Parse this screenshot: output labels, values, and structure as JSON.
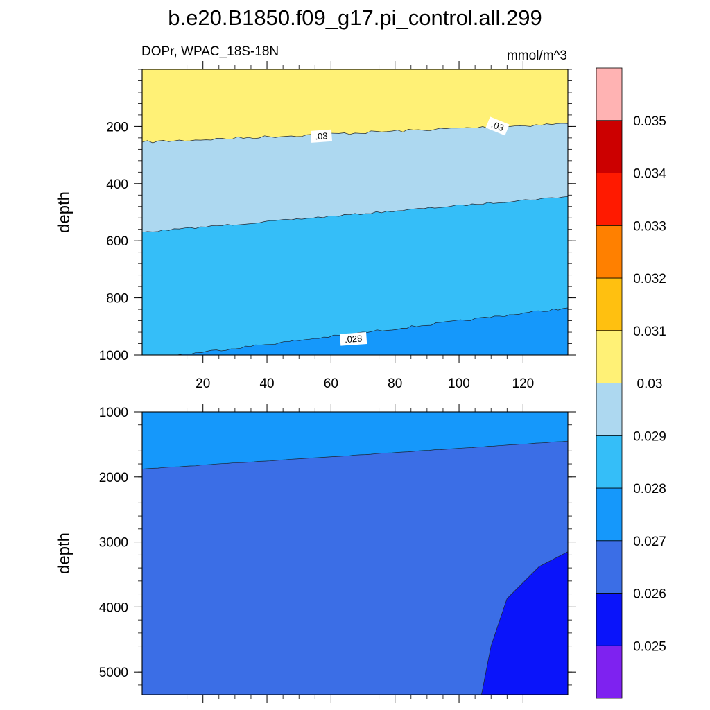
{
  "title": "b.e20.B1850.f09_g17.pi_control.all.299",
  "left_subtitle": "DOPr, WPAC_18S-18N",
  "right_subtitle": "mmol/m^3",
  "chart_data": {
    "type": "contour",
    "variable": "DOPr",
    "units": "mmol/m^3",
    "x": {
      "range": [
        1,
        134
      ],
      "ticks": [
        20,
        40,
        60,
        80,
        100,
        120
      ]
    },
    "panels": [
      {
        "name": "upper",
        "ylabel": "depth",
        "y_range": [
          0,
          1000
        ],
        "y_ticks": [
          200,
          400,
          600,
          800,
          1000
        ],
        "fills": [
          {
            "color": "#fff176",
            "range": "0.030-0.031"
          },
          {
            "color": "#add8f0",
            "range": "0.029-0.030"
          },
          {
            "color": "#35bef8",
            "range": "0.028-0.029"
          },
          {
            "color": "#1598fb",
            "range": "0.027-0.028"
          }
        ],
        "contours": [
          {
            "level": 0.03,
            "depth_at_x": [
              [
                1,
                255
              ],
              [
                134,
                190
              ]
            ]
          },
          {
            "level": 0.029,
            "depth_at_x": [
              [
                1,
                570
              ],
              [
                134,
                445
              ]
            ]
          },
          {
            "level": 0.028,
            "depth_at_x": [
              [
                12,
                1000
              ],
              [
                134,
                835
              ]
            ]
          }
        ],
        "contour_labels": [
          {
            "text": ".03",
            "x": 57,
            "depth": 235
          },
          {
            "text": ".03",
            "x": 112,
            "depth": 200
          },
          {
            "text": ".028",
            "x": 67,
            "depth": 945
          }
        ]
      },
      {
        "name": "lower",
        "ylabel": "depth",
        "y_range": [
          1000,
          5350
        ],
        "y_ticks": [
          1000,
          2000,
          3000,
          4000,
          5000
        ],
        "fills": [
          {
            "color": "#1598fb",
            "range": "0.027-0.028"
          },
          {
            "color": "#3b6ee6",
            "range": "0.026-0.027"
          },
          {
            "color": "#0a14fa",
            "range": "0.025-0.026"
          }
        ],
        "contours": [
          {
            "level": 0.027,
            "depth_at_x": [
              [
                1,
                1880
              ],
              [
                134,
                1450
              ]
            ]
          },
          {
            "level": 0.026,
            "points": [
              [
                107,
                5350
              ],
              [
                110,
                4600
              ],
              [
                115,
                3870
              ],
              [
                125,
                3380
              ],
              [
                134,
                3150
              ]
            ]
          }
        ]
      }
    ],
    "colorbar": {
      "colors": [
        "#7e22f0",
        "#0a14fa",
        "#3b6ee6",
        "#1598fb",
        "#35bef8",
        "#add8f0",
        "#fff176",
        "#ffc010",
        "#ff8000",
        "#ff1a00",
        "#cc0000",
        "#ffb3b3"
      ],
      "labels": [
        "0.025",
        "0.026",
        "0.027",
        "0.028",
        "0.029",
        "0.03",
        "0.031",
        "0.032",
        "0.033",
        "0.034",
        "0.035"
      ]
    }
  }
}
